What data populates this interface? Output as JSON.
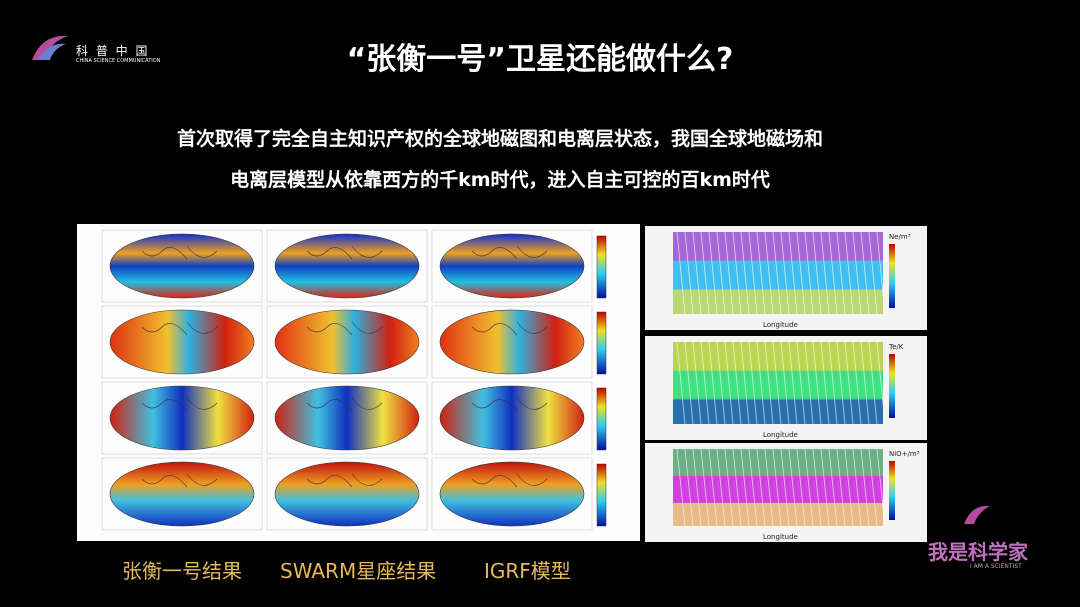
{
  "logo": {
    "name": "科 普 中 国",
    "subtitle": "CHINA SCIENCE COMMUNICATION"
  },
  "header": {
    "title": "“张衡一号”卫星还能做什么?"
  },
  "body": {
    "lines": [
      "首次取得了完全自主知识产权的全球地磁图和电离层状态，我国全球地磁场和",
      "电离层模型从依靠西方的千km时代，进入自主可控的百km时代"
    ]
  },
  "panels": {
    "units": [
      "Ne/m³",
      "Te/K",
      "NiO+/m³"
    ],
    "axis_label": "Longitude"
  },
  "captions": [
    "张衡一号结果",
    "SWARM星座结果",
    "IGRF模型"
  ],
  "brand": {
    "name": "我是科学家",
    "subtitle": "I AM A SCIENTIST"
  }
}
